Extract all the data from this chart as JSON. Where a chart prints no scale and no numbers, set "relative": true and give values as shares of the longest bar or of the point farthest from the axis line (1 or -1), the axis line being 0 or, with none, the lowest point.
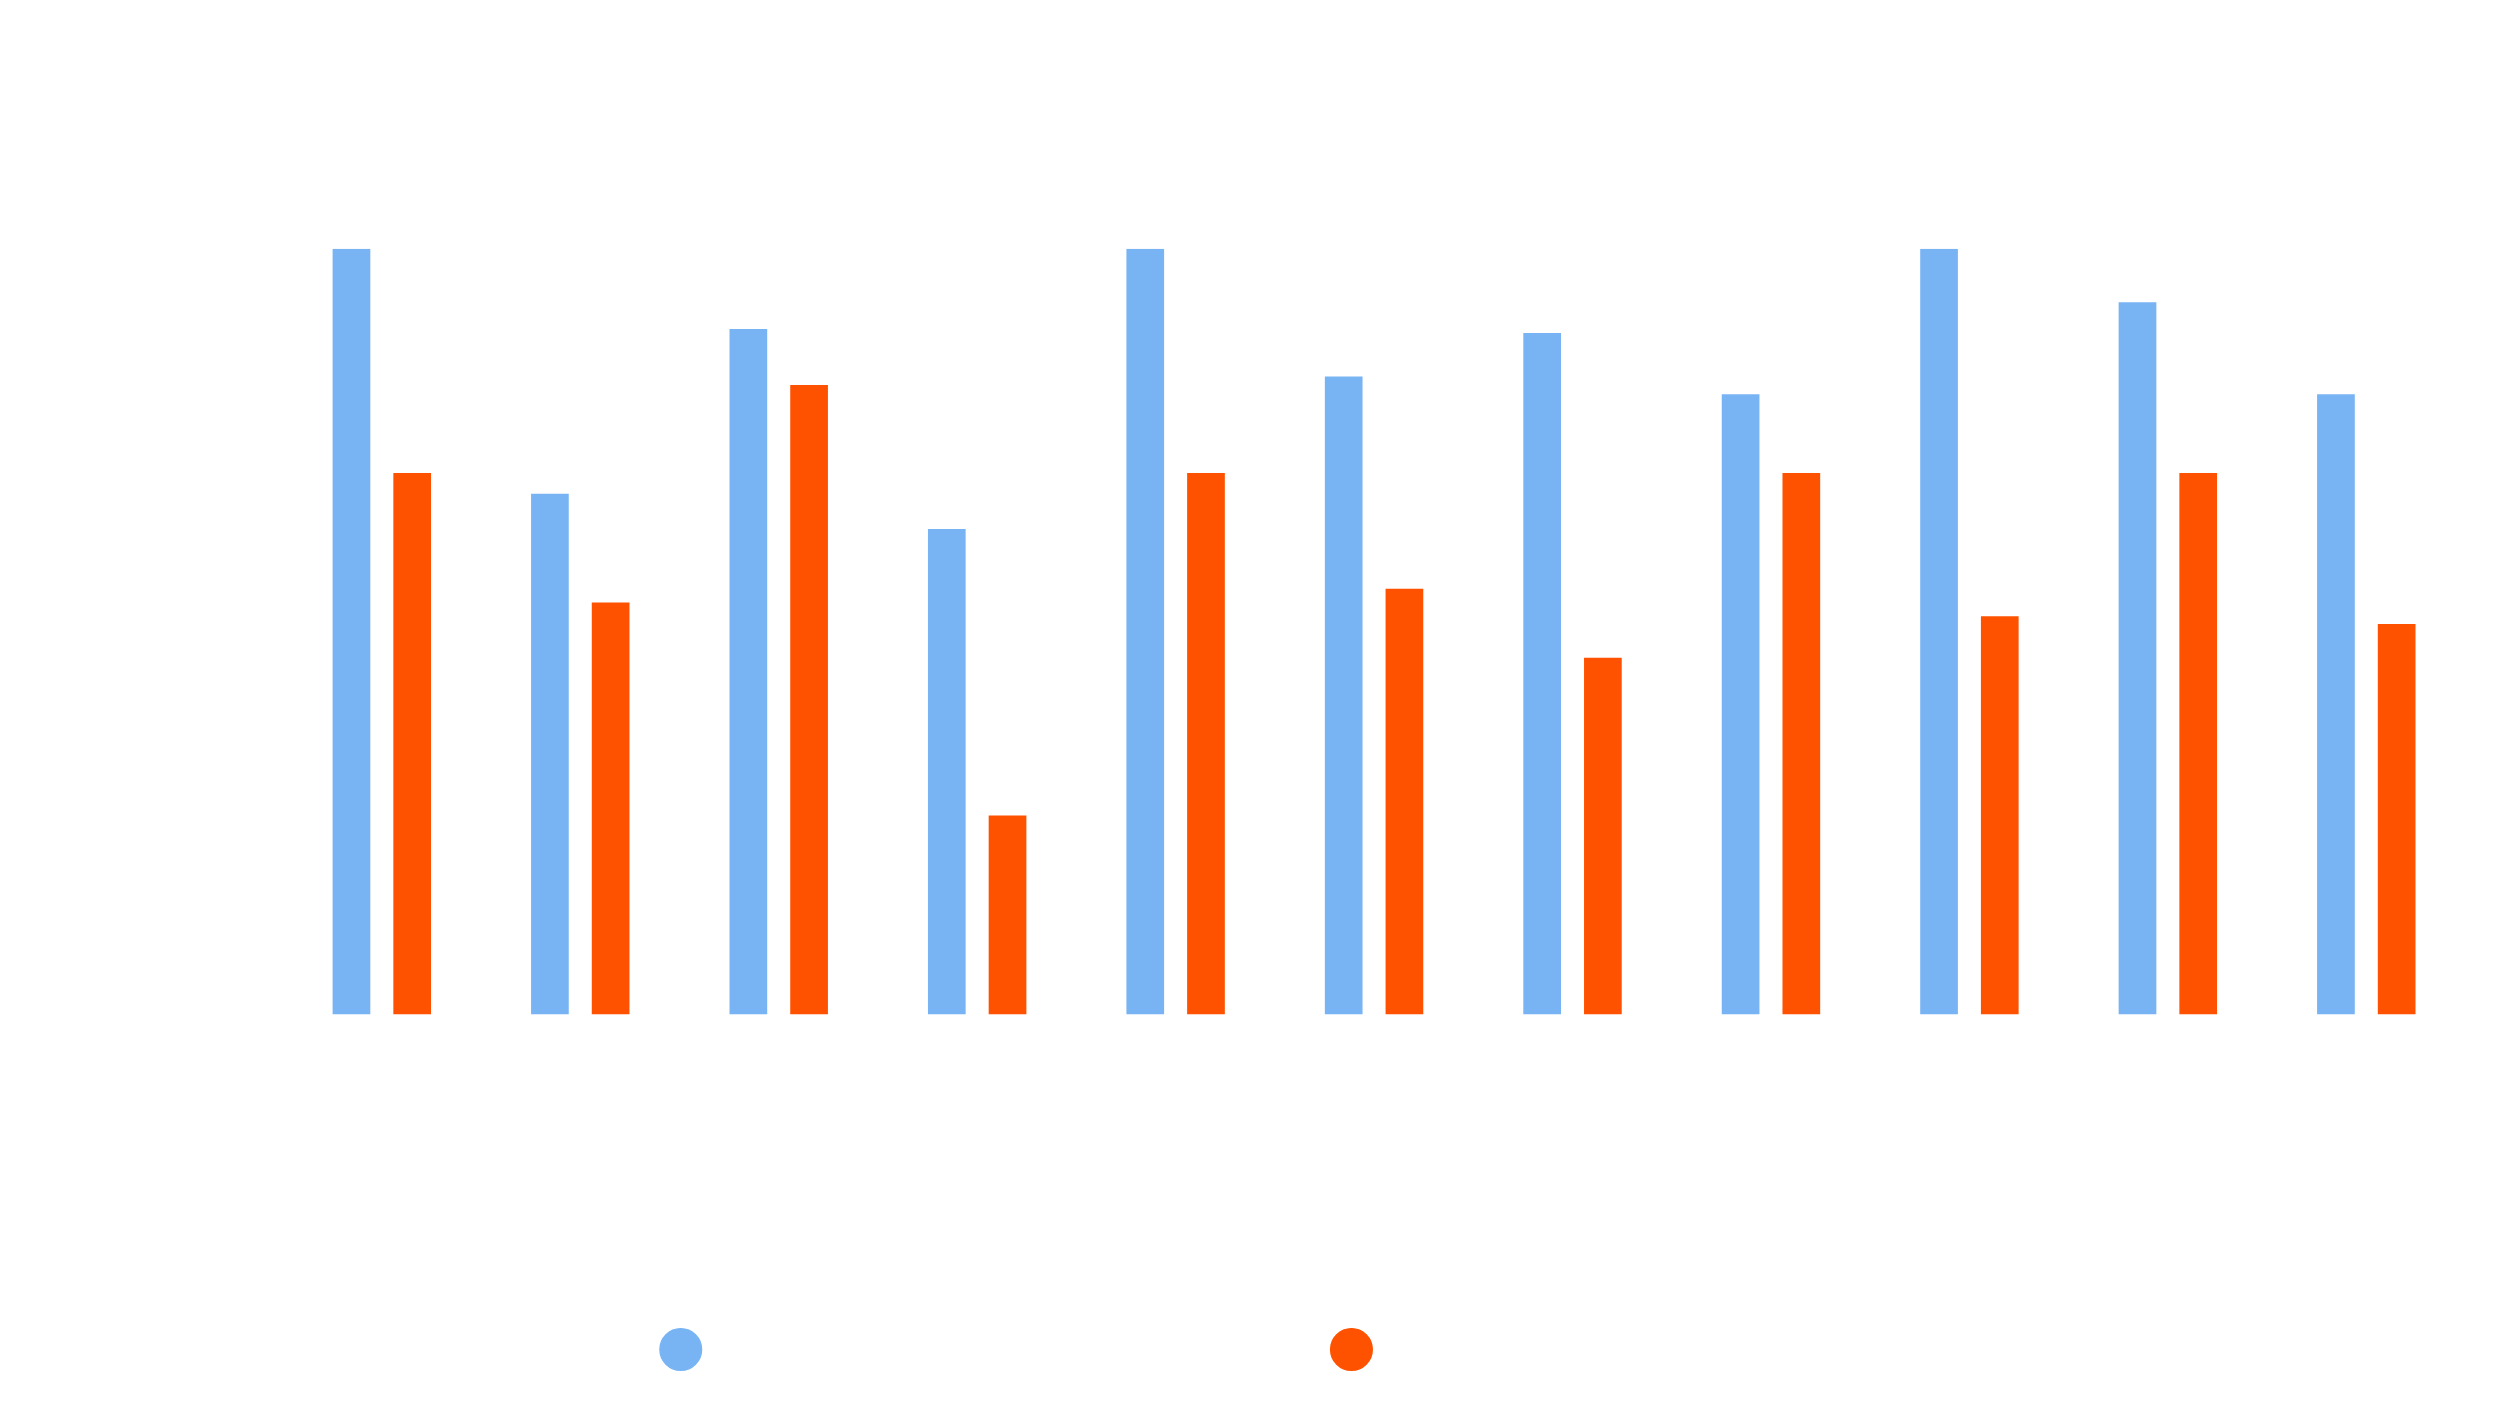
{
  "chart_data": {
    "type": "bar",
    "relative": true,
    "categories": [
      null,
      null,
      null,
      null,
      null,
      null,
      null,
      null,
      null,
      null,
      null
    ],
    "series": [
      {
        "color": "#78b4f4",
        "values": [
          1.0,
          0.68,
          0.895,
          0.634,
          1.0,
          0.833,
          0.89,
          0.81,
          1.0,
          0.93,
          0.81
        ]
      },
      {
        "color": "#ff5200",
        "values": [
          0.707,
          0.538,
          0.822,
          0.26,
          0.707,
          0.556,
          0.466,
          0.707,
          0.52,
          0.707,
          0.51
        ]
      }
    ]
  }
}
